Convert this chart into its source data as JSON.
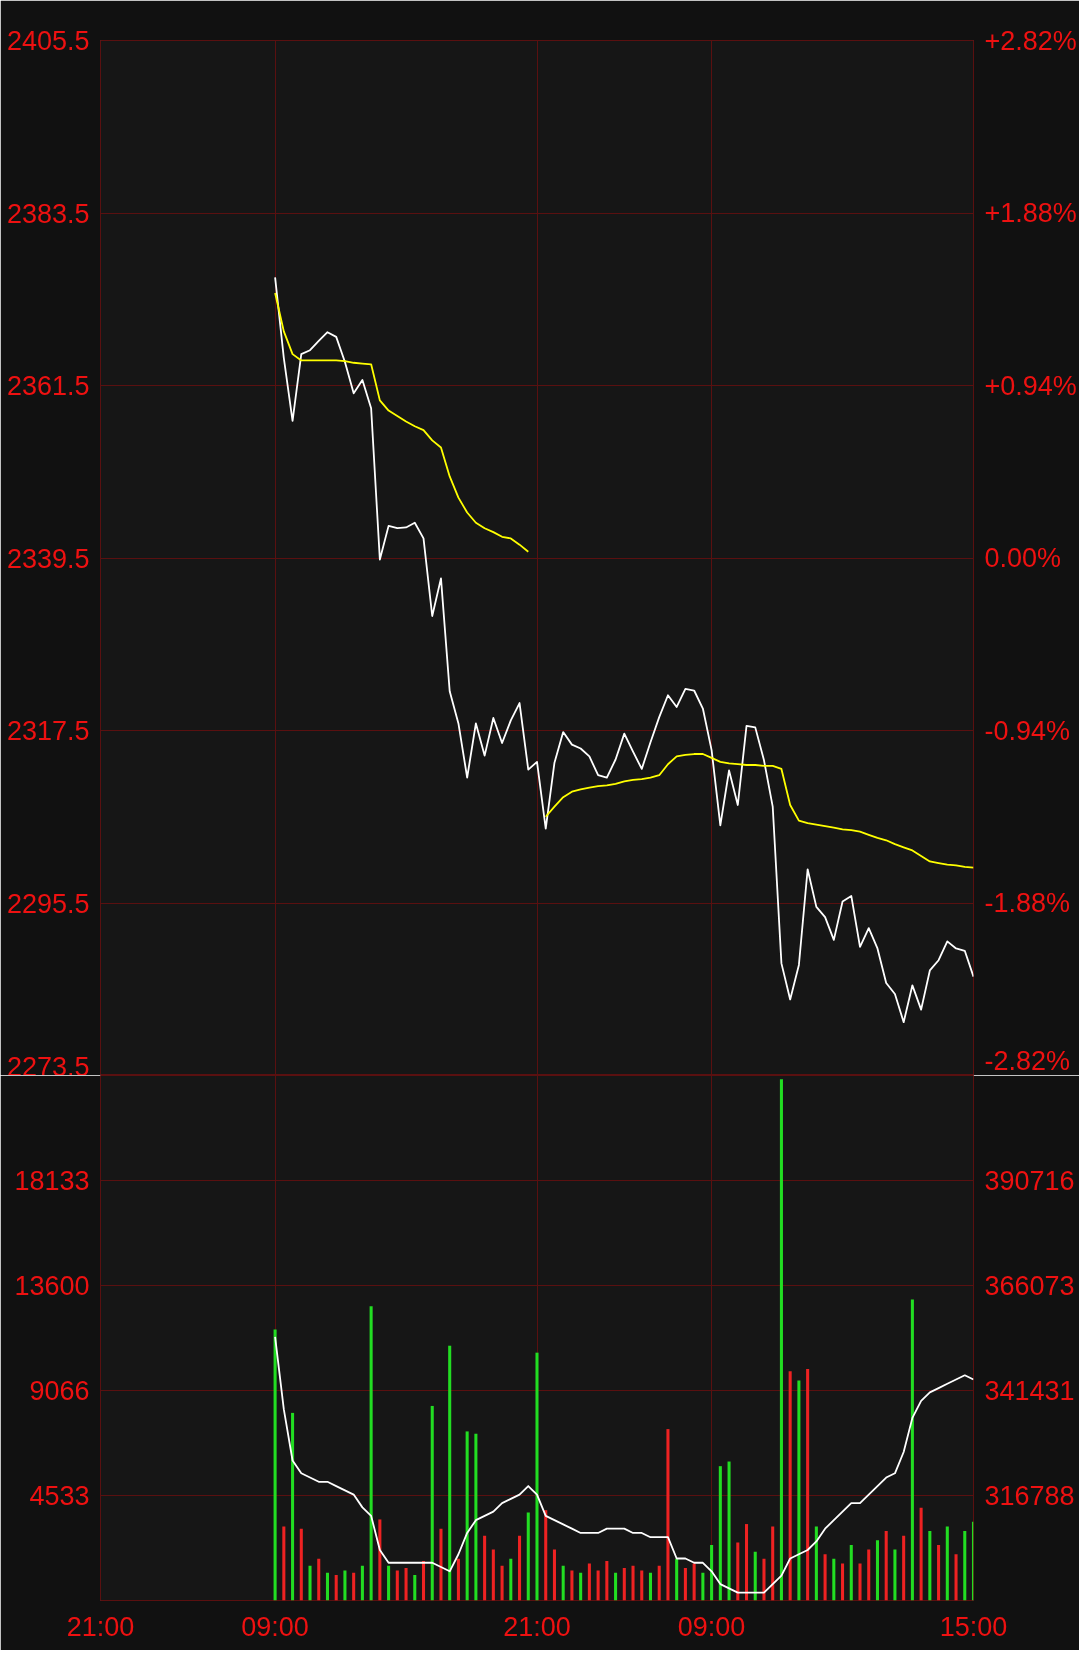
{
  "chart_data": [
    {
      "type": "line",
      "categories": [
        null,
        null,
        null,
        null,
        null,
        null,
        null,
        null,
        null,
        null,
        null,
        null,
        null,
        null,
        null,
        null,
        null,
        null,
        null,
        null,
        null,
        null,
        null,
        null,
        null,
        null,
        null,
        null,
        null,
        null,
        null,
        null,
        null,
        null,
        null,
        null,
        null,
        null,
        null,
        null,
        null,
        null,
        null,
        null,
        null,
        null,
        null,
        null,
        null,
        null,
        null,
        null,
        null,
        null,
        null,
        null,
        null,
        null,
        null,
        null,
        null,
        null,
        null,
        null,
        null,
        null,
        null,
        null,
        null,
        null,
        null,
        null,
        null,
        null,
        null,
        null,
        null,
        null,
        null,
        null,
        null,
        null,
        null,
        null,
        null,
        null,
        null,
        null,
        null,
        null,
        null,
        null,
        null,
        null,
        null,
        null,
        null,
        null,
        null,
        null,
        null
      ],
      "ylim": [
        2273.5,
        2405.5
      ],
      "yticks": [
        2273.5,
        2295.5,
        2317.5,
        2339.5,
        2361.5,
        2383.5,
        2405.5
      ],
      "y2lim": [
        -2.82,
        2.82
      ],
      "y2ticks": [
        {
          "value": -2.82,
          "label": "-2.82%"
        },
        {
          "value": -1.88,
          "label": "-1.88%"
        },
        {
          "value": -0.94,
          "label": "-0.94%"
        },
        {
          "value": 0,
          "label": "0.00%"
        },
        {
          "value": 0.94,
          "label": "+0.94%"
        },
        {
          "value": 1.88,
          "label": "+1.88%"
        },
        {
          "value": 2.82,
          "label": "+2.82%"
        }
      ],
      "tick_labels": "y",
      "grid": true,
      "series": [
        {
          "color": "#ffffff",
          "values": [
            null,
            null,
            null,
            null,
            null,
            null,
            null,
            null,
            null,
            null,
            null,
            null,
            null,
            null,
            null,
            null,
            null,
            null,
            null,
            null,
            2375.3,
            2365,
            2357,
            2365.5,
            2366,
            2367.2,
            2368.3,
            2367.7,
            2364.5,
            2360.5,
            2362.2,
            2358.6,
            2339.3,
            2343.6,
            2343.3,
            2343.4,
            2344,
            2342,
            2332.1,
            2336.9,
            2322.5,
            2318.4,
            2311.5,
            2318.4,
            2314.3,
            2319.1,
            2315.9,
            2318.8,
            2321,
            2312.5,
            2313.5,
            2305,
            2313.4,
            2317.3,
            2315.7,
            2315.2,
            2314.2,
            2311.8,
            2311.5,
            2313.8,
            2317.1,
            2314.8,
            2312.6,
            2316,
            2319.2,
            2322,
            2320.5,
            2322.8,
            2322.6,
            2320.3,
            2315,
            2305.4,
            2312.4,
            2308,
            2318.1,
            2317.9,
            2313.7,
            2307.8,
            2287.8,
            2283.2,
            2287.6,
            2299.8,
            2295,
            2293.7,
            2290.8,
            2295.7,
            2296.4,
            2289.9,
            2292.3,
            2289.7,
            2285.3,
            2283.9,
            2280.3,
            2285,
            2281.9,
            2286.9,
            2288.2,
            2290.6,
            2289.7,
            2289.4,
            2286.1
          ]
        },
        {
          "color": "#ffff00",
          "values": [
            null,
            null,
            null,
            null,
            null,
            null,
            null,
            null,
            null,
            null,
            null,
            null,
            null,
            null,
            null,
            null,
            null,
            null,
            null,
            null,
            2373.3,
            2368.4,
            2365.5,
            2364.7,
            2364.7,
            2364.7,
            2364.7,
            2364.7,
            2364.6,
            2364.4,
            2364.3,
            2364.2,
            2359.6,
            2358.3,
            2357.6,
            2356.9,
            2356.3,
            2355.8,
            2354.5,
            2353.6,
            2349.9,
            2347.2,
            2345.3,
            2344,
            2343.3,
            2342.8,
            2342.2,
            2342,
            2341.2,
            2340.3,
            null,
            2306.5,
            2307.8,
            2309,
            2309.7,
            2310,
            2310.2,
            2310.4,
            2310.5,
            2310.7,
            2311,
            2311.2,
            2311.3,
            2311.5,
            2311.8,
            2313.2,
            2314.2,
            2314.4,
            2314.5,
            2314.5,
            2314,
            2313.5,
            2313.3,
            2313.2,
            2313.1,
            2313.1,
            2313,
            2313,
            2312.6,
            2308,
            2306,
            2305.7,
            2305.5,
            2305.3,
            2305.1,
            2304.9,
            2304.8,
            2304.6,
            2304.2,
            2303.8,
            2303.5,
            2303,
            2302.6,
            2302.2,
            2301.5,
            2300.8,
            2300.6,
            2300.4,
            2300.3,
            2300.1,
            2300
          ]
        }
      ]
    },
    {
      "type": "bar",
      "categories": [
        "21:00",
        null,
        null,
        null,
        null,
        null,
        null,
        null,
        null,
        null,
        null,
        null,
        null,
        null,
        null,
        null,
        null,
        null,
        null,
        null,
        "09:00",
        null,
        null,
        null,
        null,
        null,
        null,
        null,
        null,
        null,
        null,
        null,
        null,
        null,
        null,
        null,
        null,
        null,
        null,
        null,
        null,
        null,
        null,
        null,
        null,
        null,
        null,
        null,
        null,
        null,
        "21:00",
        null,
        null,
        null,
        null,
        null,
        null,
        null,
        null,
        null,
        null,
        null,
        null,
        null,
        null,
        null,
        null,
        null,
        null,
        null,
        "09:00",
        null,
        null,
        null,
        null,
        null,
        null,
        null,
        null,
        null,
        null,
        null,
        null,
        null,
        null,
        null,
        null,
        null,
        null,
        null,
        null,
        null,
        null,
        null,
        null,
        null,
        null,
        null,
        null,
        null,
        "15:00"
      ],
      "ylim": [
        0,
        22666
      ],
      "yticks": [
        4533,
        9066,
        13600,
        18133
      ],
      "y2lim": [
        292145,
        415360
      ],
      "y2ticks": [
        316788,
        341431,
        366073,
        390716
      ],
      "grid": true,
      "series": [
        {
          "type": "bar",
          "values": [
            null,
            null,
            null,
            null,
            null,
            null,
            null,
            null,
            null,
            null,
            null,
            null,
            null,
            null,
            null,
            null,
            null,
            null,
            null,
            null,
            11700,
            3200,
            8100,
            3100,
            1500,
            1800,
            1200,
            1100,
            1300,
            1200,
            1500,
            12700,
            3500,
            1500,
            1300,
            1400,
            1100,
            1700,
            8400,
            3100,
            11000,
            1800,
            7300,
            7200,
            2800,
            2200,
            1500,
            1800,
            2800,
            3800,
            10700,
            3900,
            2200,
            1500,
            1300,
            1200,
            1600,
            1300,
            1700,
            1200,
            1400,
            1500,
            1300,
            1200,
            1500,
            7400,
            1800,
            1400,
            1600,
            1200,
            2400,
            5800,
            6000,
            2500,
            3300,
            2100,
            1800,
            3200,
            22500,
            9900,
            9500,
            10000,
            3200,
            2000,
            1800,
            1600,
            2400,
            1600,
            2200,
            2600,
            3000,
            2200,
            2800,
            13000,
            4000,
            3000,
            2400,
            3200,
            2000,
            3000,
            3400
          ],
          "colors": [
            null,
            null,
            null,
            null,
            null,
            null,
            null,
            null,
            null,
            null,
            null,
            null,
            null,
            null,
            null,
            null,
            null,
            null,
            null,
            null,
            "#22dd22",
            "#ee2222",
            "#22dd22",
            "#ee2222",
            "#22dd22",
            "#ee2222",
            "#22dd22",
            "#ee2222",
            "#22dd22",
            "#ee2222",
            "#22dd22",
            "#22dd22",
            "#ee2222",
            "#22dd22",
            "#ee2222",
            "#ee2222",
            "#22dd22",
            "#ee2222",
            "#22dd22",
            "#ee2222",
            "#22dd22",
            "#ee2222",
            "#22dd22",
            "#22dd22",
            "#ee2222",
            "#ee2222",
            "#ee2222",
            "#22dd22",
            "#ee2222",
            "#22dd22",
            "#22dd22",
            "#ee2222",
            "#ee2222",
            "#22dd22",
            "#ee2222",
            "#22dd22",
            "#ee2222",
            "#ee2222",
            "#ee2222",
            "#22dd22",
            "#ee2222",
            "#ee2222",
            "#ee2222",
            "#22dd22",
            "#ee2222",
            "#ee2222",
            "#22dd22",
            "#ee2222",
            "#ee2222",
            "#22dd22",
            "#22dd22",
            "#22dd22",
            "#22dd22",
            "#ee2222",
            "#ee2222",
            "#22dd22",
            "#ee2222",
            "#ee2222",
            "#22dd22",
            "#ee2222",
            "#22dd22",
            "#ee2222",
            "#22dd22",
            "#ee2222",
            "#22dd22",
            "#ee2222",
            "#22dd22",
            "#ee2222",
            "#ee2222",
            "#22dd22",
            "#ee2222",
            "#22dd22",
            "#ee2222",
            "#22dd22",
            "#ee2222",
            "#22dd22",
            "#ee2222",
            "#22dd22",
            "#ee2222",
            "#22dd22",
            "#22dd22"
          ]
        },
        {
          "type": "line",
          "axis": "y2",
          "color": "#ffffff",
          "values": [
            null,
            null,
            null,
            null,
            null,
            null,
            null,
            null,
            null,
            null,
            null,
            null,
            null,
            null,
            null,
            null,
            null,
            null,
            null,
            null,
            354000,
            337000,
            325000,
            322000,
            321000,
            320000,
            320000,
            319000,
            318000,
            317000,
            314000,
            312000,
            304000,
            301000,
            301000,
            301000,
            301000,
            301000,
            301000,
            300000,
            299000,
            303000,
            308000,
            311000,
            312000,
            313000,
            315000,
            316000,
            317000,
            319000,
            317000,
            312000,
            311000,
            310000,
            309000,
            308000,
            308000,
            308000,
            309000,
            309000,
            309000,
            308000,
            308000,
            307000,
            307000,
            307000,
            302000,
            302000,
            301000,
            301000,
            299000,
            296000,
            295000,
            294000,
            294000,
            294000,
            294000,
            296000,
            298000,
            302000,
            303000,
            304000,
            306000,
            309000,
            311000,
            313000,
            315000,
            315000,
            317000,
            319000,
            321000,
            322000,
            327000,
            335000,
            339000,
            341000,
            342000,
            343000,
            344000,
            345000,
            344000
          ]
        }
      ]
    }
  ]
}
